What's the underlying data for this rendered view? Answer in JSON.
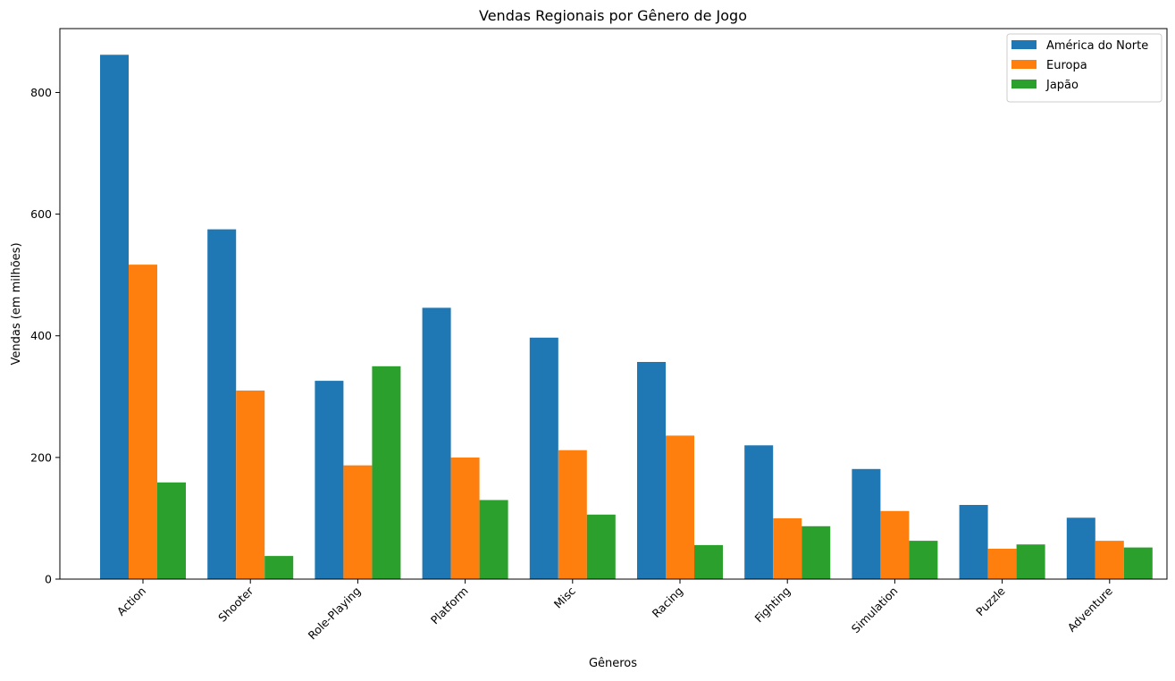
{
  "chart_data": {
    "type": "bar",
    "title": "Vendas Regionais por Gênero de Jogo",
    "xlabel": "Gêneros",
    "ylabel": "Vendas (em milhões)",
    "categories": [
      "Action",
      "Shooter",
      "Role-Playing",
      "Platform",
      "Misc",
      "Racing",
      "Fighting",
      "Simulation",
      "Puzzle",
      "Adventure"
    ],
    "series": [
      {
        "name": "América do Norte",
        "color": "#1f77b4",
        "values": [
          862,
          575,
          326,
          446,
          397,
          357,
          220,
          181,
          122,
          101
        ]
      },
      {
        "name": "Europa",
        "color": "#ff7f0e",
        "values": [
          517,
          310,
          187,
          200,
          212,
          236,
          100,
          112,
          50,
          63
        ]
      },
      {
        "name": "Japão",
        "color": "#2ca02c",
        "values": [
          159,
          38,
          350,
          130,
          106,
          56,
          87,
          63,
          57,
          52
        ]
      }
    ],
    "ylim": [
      0,
      905
    ],
    "yticks": [
      0,
      200,
      400,
      600,
      800
    ],
    "grid": false,
    "legend": "top-right"
  }
}
